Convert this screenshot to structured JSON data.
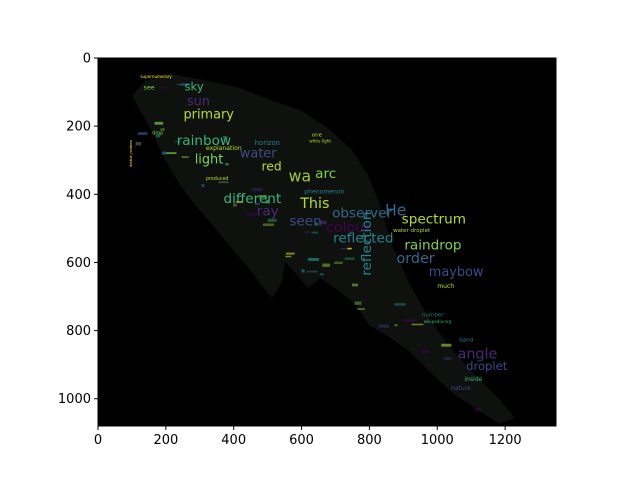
{
  "chart_data": {
    "type": "wordcloud-image",
    "title": "",
    "xlabel": "",
    "ylabel": "",
    "xlim": [
      0,
      1350
    ],
    "ylim": [
      1080,
      0
    ],
    "y_axis_inverted": true,
    "x_ticks": [
      0,
      200,
      400,
      600,
      800,
      1000,
      1200
    ],
    "y_ticks": [
      0,
      200,
      400,
      600,
      800,
      1000
    ],
    "background_color": "#000000",
    "palette": [
      "#9acd32",
      "#7fd34e",
      "#35b779",
      "#1f9e89",
      "#26828e",
      "#31688e",
      "#3e4a89",
      "#482878",
      "#440154",
      "#fde725"
    ],
    "words": [
      {
        "text": "supernumerary",
        "x": 125,
        "y": 58,
        "size": 12,
        "color": "#fde725"
      },
      {
        "text": "see",
        "x": 135,
        "y": 92,
        "size": 18,
        "color": "#7fd34e"
      },
      {
        "text": "sky",
        "x": 255,
        "y": 95,
        "size": 34,
        "color": "#35b779"
      },
      {
        "text": "sun",
        "x": 262,
        "y": 140,
        "size": 38,
        "color": "#482878"
      },
      {
        "text": "primary",
        "x": 252,
        "y": 178,
        "size": 38,
        "color": "#b5de2b"
      },
      {
        "text": "double_rainbow",
        "x": 100,
        "y": 280,
        "size": 10,
        "color": "#fde725",
        "rotate": true
      },
      {
        "text": "drop",
        "x": 160,
        "y": 224,
        "size": 14,
        "color": "#7fd34e"
      },
      {
        "text": "rainbow",
        "x": 232,
        "y": 256,
        "size": 40,
        "color": "#35b779"
      },
      {
        "text": "explanation",
        "x": 318,
        "y": 270,
        "size": 18,
        "color": "#b5de2b"
      },
      {
        "text": "horizon",
        "x": 462,
        "y": 255,
        "size": 20,
        "color": "#26828e"
      },
      {
        "text": "one",
        "x": 630,
        "y": 230,
        "size": 16,
        "color": "#b5de2b"
      },
      {
        "text": "white light",
        "x": 623,
        "y": 248,
        "size": 12,
        "color": "#b5de2b"
      },
      {
        "text": "water",
        "x": 418,
        "y": 292,
        "size": 38,
        "color": "#3e4a89"
      },
      {
        "text": "light",
        "x": 285,
        "y": 310,
        "size": 38,
        "color": "#7fd34e"
      },
      {
        "text": "red",
        "x": 482,
        "y": 330,
        "size": 36,
        "color": "#b5de2b"
      },
      {
        "text": "produced",
        "x": 318,
        "y": 358,
        "size": 14,
        "color": "#b5de2b"
      },
      {
        "text": "wa",
        "x": 562,
        "y": 362,
        "size": 46,
        "color": "#9acd32"
      },
      {
        "text": "arc",
        "x": 640,
        "y": 352,
        "size": 40,
        "color": "#7fd34e"
      },
      {
        "text": "phenomenon",
        "x": 608,
        "y": 398,
        "size": 18,
        "color": "#26828e"
      },
      {
        "text": "different",
        "x": 370,
        "y": 425,
        "size": 40,
        "color": "#35b779"
      },
      {
        "text": "This",
        "x": 596,
        "y": 440,
        "size": 42,
        "color": "#b5de2b"
      },
      {
        "text": "ray",
        "x": 468,
        "y": 462,
        "size": 40,
        "color": "#482878"
      },
      {
        "text": "observer",
        "x": 690,
        "y": 468,
        "size": 40,
        "color": "#31688e"
      },
      {
        "text": "He",
        "x": 846,
        "y": 462,
        "size": 46,
        "color": "#31688e"
      },
      {
        "text": "seen",
        "x": 564,
        "y": 492,
        "size": 40,
        "color": "#3e4a89"
      },
      {
        "text": "colour",
        "x": 672,
        "y": 510,
        "size": 42,
        "color": "#440154"
      },
      {
        "text": "spectrum",
        "x": 895,
        "y": 485,
        "size": 40,
        "color": "#b5de2b"
      },
      {
        "text": "water droplet",
        "x": 870,
        "y": 510,
        "size": 16,
        "color": "#b5de2b"
      },
      {
        "text": "reflected",
        "x": 693,
        "y": 542,
        "size": 40,
        "color": "#26828e"
      },
      {
        "text": "raindrop",
        "x": 903,
        "y": 562,
        "size": 40,
        "color": "#7fd34e"
      },
      {
        "text": "order",
        "x": 880,
        "y": 602,
        "size": 42,
        "color": "#31688e"
      },
      {
        "text": "reflection",
        "x": 805,
        "y": 545,
        "size": 40,
        "color": "#26828e",
        "rotate": true
      },
      {
        "text": "maybow",
        "x": 975,
        "y": 640,
        "size": 38,
        "color": "#3e4a89"
      },
      {
        "text": "much",
        "x": 1000,
        "y": 675,
        "size": 18,
        "color": "#b5de2b"
      },
      {
        "text": "number",
        "x": 955,
        "y": 758,
        "size": 16,
        "color": "#26828e"
      },
      {
        "text": "wikipedia org",
        "x": 960,
        "y": 778,
        "size": 12,
        "color": "#35b779"
      },
      {
        "text": "band",
        "x": 1065,
        "y": 832,
        "size": 16,
        "color": "#26828e"
      },
      {
        "text": "angle",
        "x": 1060,
        "y": 882,
        "size": 42,
        "color": "#482878"
      },
      {
        "text": "droplet",
        "x": 1085,
        "y": 915,
        "size": 34,
        "color": "#3e4a89"
      },
      {
        "text": "inside",
        "x": 1080,
        "y": 948,
        "size": 18,
        "color": "#35b779"
      },
      {
        "text": "nature",
        "x": 1040,
        "y": 975,
        "size": 18,
        "color": "#3e4a89"
      }
    ]
  }
}
